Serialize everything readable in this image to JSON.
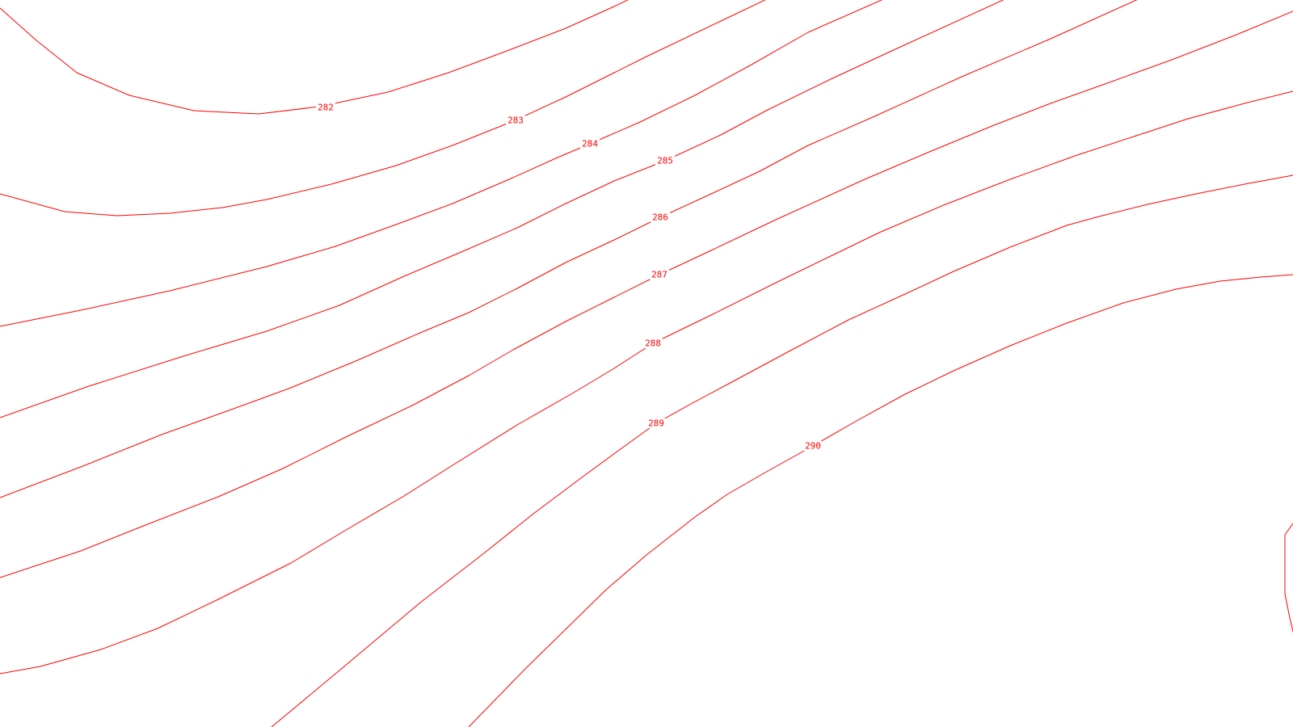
{
  "map": {
    "line_color": "#ff0000",
    "background_color": "#ffffff",
    "contours": [
      {
        "id": "282",
        "label": "282"
      },
      {
        "id": "283",
        "label": "283"
      },
      {
        "id": "284",
        "label": "284"
      },
      {
        "id": "285",
        "label": "285"
      },
      {
        "id": "286",
        "label": "286"
      },
      {
        "id": "287",
        "label": "287"
      },
      {
        "id": "288",
        "label": "288"
      },
      {
        "id": "289",
        "label": "289"
      },
      {
        "id": "290",
        "label": "290"
      }
    ]
  }
}
